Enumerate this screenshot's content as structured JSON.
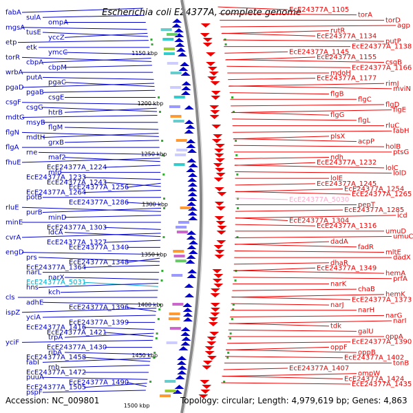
{
  "title": "Escherichia coli E24377A, complete genome",
  "footer": {
    "accession": "Accession: NC_009801",
    "summary": "Topology: circular; Length: 4,979,619 bp; Genes: 4,863"
  },
  "colors": {
    "forward": "#0000cc",
    "reverse": "#ee0000",
    "highlight_forward": "#00aacc",
    "highlight_reverse": "#ffaacc",
    "backbone": "#888888",
    "tick": "#33aa33"
  },
  "kbp_ticks": [
    "1150 kbp",
    "1200 kbp",
    "1250 kbp",
    "1300 kbp",
    "1350 kbp",
    "1400 kbp",
    "1450 kbp",
    "1500 kbp"
  ],
  "left_labels": [
    "fabA",
    "sulA",
    "ompA",
    "mgsA",
    "tusE",
    "yccZ",
    "etp",
    "etk",
    "ymcC",
    "torR",
    "cbpA",
    "cbpM",
    "wrbA",
    "putA",
    "pgaC",
    "pgaD",
    "pgaB",
    "csgE",
    "csgF",
    "csgG",
    "htrB",
    "mdtG",
    "msyB",
    "flgM",
    "flgN",
    "mdtH",
    "grxB",
    "flgA",
    "rne",
    "maf2",
    "fhuE",
    "EcE24377A_1224",
    "mfd",
    "EcE24377A_1233",
    "EcE24377A_1243",
    "EcE24377A_1256",
    "EcE24377A_1264",
    "potB",
    "EcE24377A_1286",
    "rluE",
    "purB",
    "minD",
    "minE",
    "EcE24377A_1303",
    "ldcA",
    "cvrA",
    "EcE24377A_1327",
    "EcE24377A_1340",
    "engD",
    "prs",
    "EcE24377A_1348",
    "EcE24377A_1364",
    "narL",
    "narX",
    "EcE24377A_5031",
    "hns",
    "kch",
    "cls",
    "adhE",
    "EcE24377A_1396",
    "ispZ",
    "yciA",
    "EcE24377A_1399",
    "EcE24377A_1416",
    "EcE24377A_1421",
    "trpA",
    "yciF",
    "EcE24377A_1430",
    "ribA",
    "EcE24377A_1458",
    "fabI",
    "rnb",
    "EcE24377A_1472",
    "puuA",
    "EcE24377A_1490",
    "EcE24377A_1505",
    "pspF"
  ],
  "right_labels": [
    "EcE24377A_1105",
    "torA",
    "torD",
    "agp",
    "rutR",
    "EcE24377A_1134",
    "putP",
    "EcE24377A_1138",
    "EcE24377A_1145",
    "EcE24377A_1155",
    "csgB",
    "EcE24377A_1166",
    "mdoH",
    "EcE24377A_1177",
    "rimJ",
    "mviN",
    "flgB",
    "flgC",
    "flgD",
    "flgE",
    "flgG",
    "flgL",
    "rluC",
    "fabH",
    "plsX",
    "acpP",
    "holB",
    "ptsG",
    "ndh",
    "EcE24377A_1232",
    "lolC",
    "lolD",
    "lolE",
    "EcE24377A_1245",
    "EcE24377A_1254",
    "EcE24377A_1265",
    "EcE24377A_5030",
    "pepT",
    "EcE24377A_1285",
    "icd",
    "EcE24377A_1304",
    "EcE24377A_1316",
    "umuD",
    "umuC",
    "dadA",
    "fadR",
    "mltE",
    "dadX",
    "dhaR",
    "EcE24377A_1349",
    "hemA",
    "prfA",
    "narK",
    "chaB",
    "hemK",
    "EcE24377A_1373",
    "narJ",
    "narH",
    "narG",
    "narI",
    "tdk",
    "galU",
    "oppA",
    "EcE24377A_1390",
    "oppF",
    "oppB",
    "EcE24377A_1402",
    "tonB",
    "EcE24377A_1407",
    "ompW",
    "EcE24377A_1424",
    "EcE24377A_1435"
  ]
}
